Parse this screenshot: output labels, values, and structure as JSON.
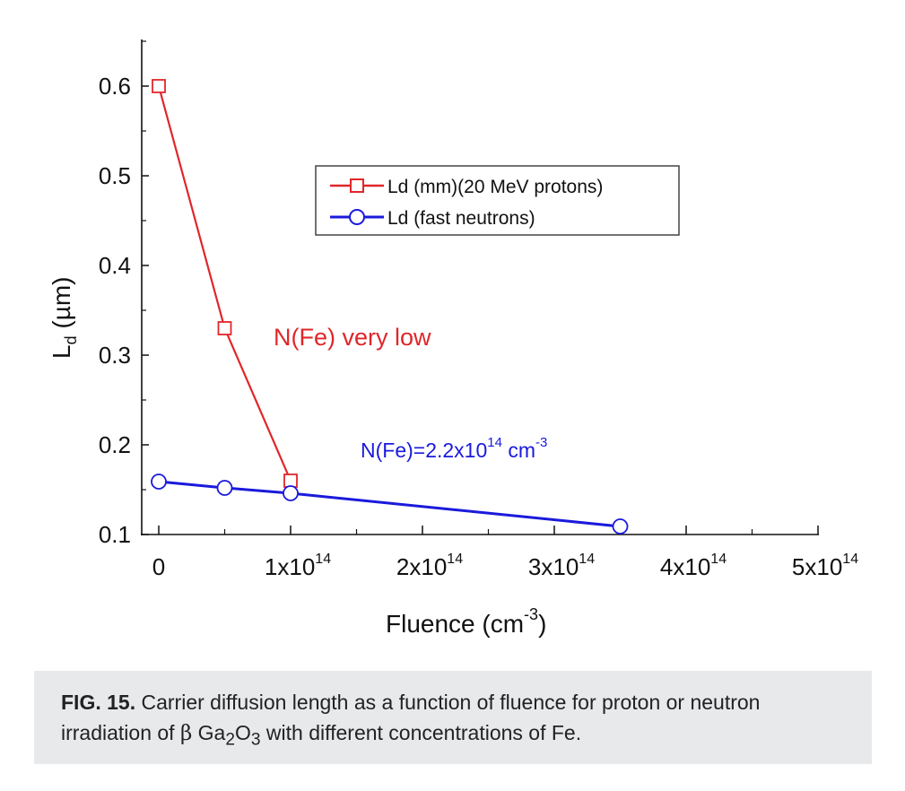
{
  "chart_data": {
    "type": "line",
    "xlabel": "Fluence (cm",
    "xlabel_sup": "-3",
    "xlabel_end": ")",
    "ylabel_main": "L",
    "ylabel_sub": "d",
    "ylabel_unit": " (µm)",
    "xlim": [
      0,
      500000000000000.0
    ],
    "ylim": [
      0.1,
      0.65
    ],
    "x_ticks": [
      {
        "value": 0,
        "base": "0",
        "exp": ""
      },
      {
        "value": 100000000000000.0,
        "base": "1x10",
        "exp": "14"
      },
      {
        "value": 200000000000000.0,
        "base": "2x10",
        "exp": "14"
      },
      {
        "value": 300000000000000.0,
        "base": "3x10",
        "exp": "14"
      },
      {
        "value": 400000000000000.0,
        "base": "4x10",
        "exp": "14"
      },
      {
        "value": 500000000000000.0,
        "base": "5x10",
        "exp": "14"
      }
    ],
    "y_ticks": [
      {
        "value": 0.1,
        "label": "0.1"
      },
      {
        "value": 0.2,
        "label": "0.2"
      },
      {
        "value": 0.3,
        "label": "0.3"
      },
      {
        "value": 0.4,
        "label": "0.4"
      },
      {
        "value": 0.5,
        "label": "0.5"
      },
      {
        "value": 0.6,
        "label": "0.6"
      }
    ],
    "series": [
      {
        "name": "Ld (mm)(20 MeV protons)",
        "color": "#e0262a",
        "marker": "square",
        "x": [
          0,
          50000000000000.0,
          100000000000000.0
        ],
        "y": [
          0.6,
          0.33,
          0.16
        ]
      },
      {
        "name": "Ld (fast neutrons)",
        "color": "#1a1adc",
        "marker": "circle",
        "x": [
          0,
          50000000000000.0,
          100000000000000.0,
          350000000000000.0
        ],
        "y": [
          0.159,
          0.152,
          0.146,
          0.109
        ]
      }
    ],
    "annotations": [
      {
        "text": "N(Fe) very low",
        "color": "#e0262a"
      },
      {
        "text_base": "N(Fe)=2.2x10",
        "text_exp1": "14",
        "text_mid": " cm",
        "text_exp2": "-3",
        "color": "#1a1adc"
      }
    ],
    "legend_position": "upper-center"
  },
  "caption": {
    "label": "FIG. 15.",
    "text_1": " Carrier diffusion length as a function of fluence for proton or neutron irradiation of ",
    "beta": "β",
    "text_ga": " Ga",
    "sub_2": "2",
    "text_o": "O",
    "sub_3": "3",
    "text_2": " with different concentrations of Fe."
  }
}
